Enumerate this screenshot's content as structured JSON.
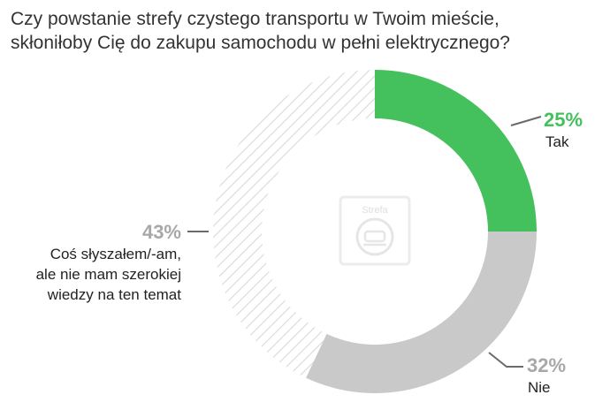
{
  "chart_data": {
    "type": "pie",
    "title_lines": [
      "Czy powstanie strefy czystego transportu w Twoim mieście,",
      "skłoniłoby Cię do zakupu samochodu w pełni elektrycznego?"
    ],
    "slices": [
      {
        "value": 25,
        "pct_label": "25%",
        "label_lines": [
          "Tak"
        ],
        "color": "#44c05c",
        "pattern": "solid"
      },
      {
        "value": 32,
        "pct_label": "32%",
        "label_lines": [
          "Nie"
        ],
        "color": "#c9c9c9",
        "pattern": "solid"
      },
      {
        "value": 43,
        "pct_label": "43%",
        "label_lines": [
          "Coś słyszałem/-am,",
          "ale nie mam szerokiej",
          "wiedzy na ten temat"
        ],
        "color": "#d9d9d9",
        "pattern": "hatched"
      }
    ],
    "center_icon": {
      "name": "clean-zone-sign-icon",
      "text": "Strefa"
    },
    "pct_colors": [
      "#44c05c",
      "#a8a8a8",
      "#a8a8a8"
    ]
  }
}
